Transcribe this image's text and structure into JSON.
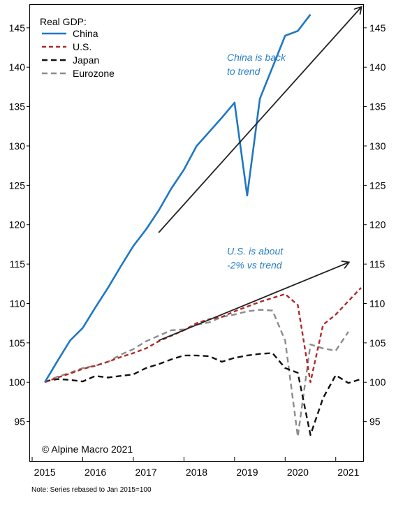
{
  "chart_data": {
    "type": "line",
    "legend_title": "Real GDP:",
    "legend_position": "top-left",
    "ylim": [
      90,
      148
    ],
    "yticks": [
      95,
      100,
      105,
      110,
      115,
      120,
      125,
      130,
      135,
      140,
      145
    ],
    "x_start": 2014.708,
    "x_end": 2021.292,
    "x_tick_labels": [
      "2015",
      "2016",
      "2017",
      "2018",
      "2019",
      "2020",
      "2021"
    ],
    "grid": false,
    "series": [
      {
        "name": "China",
        "color": "#1f77c4",
        "dash": "solid",
        "points": [
          [
            2015.0,
            100.0
          ],
          [
            2015.25,
            102.7
          ],
          [
            2015.5,
            105.3
          ],
          [
            2015.75,
            106.9
          ],
          [
            2016.0,
            109.5
          ],
          [
            2016.25,
            112.0
          ],
          [
            2016.5,
            114.7
          ],
          [
            2016.75,
            117.3
          ],
          [
            2017.0,
            119.4
          ],
          [
            2017.25,
            121.8
          ],
          [
            2017.5,
            124.6
          ],
          [
            2017.75,
            127.0
          ],
          [
            2018.0,
            130.0
          ],
          [
            2018.25,
            131.8
          ],
          [
            2018.5,
            133.6
          ],
          [
            2018.75,
            135.5
          ],
          [
            2019.0,
            123.7
          ],
          [
            2019.25,
            136.0
          ],
          [
            2019.5,
            140.0
          ],
          [
            2019.75,
            144.0
          ],
          [
            2020.0,
            144.6
          ],
          [
            2020.25,
            146.7
          ]
        ]
      },
      {
        "name": "U.S.",
        "color": "#b22a2a",
        "dash": "6,4",
        "points": [
          [
            2015.0,
            100.0
          ],
          [
            2015.25,
            100.6
          ],
          [
            2015.5,
            101.1
          ],
          [
            2015.75,
            101.7
          ],
          [
            2016.0,
            102.1
          ],
          [
            2016.25,
            102.6
          ],
          [
            2016.5,
            103.2
          ],
          [
            2016.75,
            103.7
          ],
          [
            2017.0,
            104.3
          ],
          [
            2017.25,
            105.2
          ],
          [
            2017.5,
            105.9
          ],
          [
            2017.75,
            106.6
          ],
          [
            2018.0,
            107.5
          ],
          [
            2018.25,
            108.0
          ],
          [
            2018.5,
            108.3
          ],
          [
            2018.75,
            109.0
          ],
          [
            2019.0,
            109.6
          ],
          [
            2019.25,
            110.2
          ],
          [
            2019.5,
            110.7
          ],
          [
            2019.75,
            111.2
          ],
          [
            2020.0,
            109.8
          ],
          [
            2020.25,
            100.0
          ],
          [
            2020.5,
            107.3
          ],
          [
            2020.75,
            108.6
          ],
          [
            2021.0,
            110.3
          ],
          [
            2021.25,
            112.0
          ]
        ]
      },
      {
        "name": "Japan",
        "color": "#111111",
        "dash": "8,5",
        "points": [
          [
            2015.0,
            100.1
          ],
          [
            2015.25,
            100.4
          ],
          [
            2015.5,
            100.3
          ],
          [
            2015.75,
            100.1
          ],
          [
            2016.0,
            100.8
          ],
          [
            2016.25,
            100.6
          ],
          [
            2016.5,
            100.8
          ],
          [
            2016.75,
            101.0
          ],
          [
            2017.0,
            101.8
          ],
          [
            2017.25,
            102.3
          ],
          [
            2017.5,
            102.9
          ],
          [
            2017.75,
            103.4
          ],
          [
            2018.0,
            103.4
          ],
          [
            2018.25,
            103.3
          ],
          [
            2018.5,
            102.6
          ],
          [
            2018.75,
            103.1
          ],
          [
            2019.0,
            103.4
          ],
          [
            2019.25,
            103.6
          ],
          [
            2019.5,
            103.7
          ],
          [
            2019.75,
            101.8
          ],
          [
            2020.0,
            101.2
          ],
          [
            2020.25,
            93.3
          ],
          [
            2020.5,
            98.0
          ],
          [
            2020.75,
            100.9
          ],
          [
            2021.0,
            99.9
          ],
          [
            2021.25,
            100.4
          ]
        ]
      },
      {
        "name": "Eurozone",
        "color": "#8c8c8c",
        "dash": "8,5",
        "points": [
          [
            2015.0,
            100.0
          ],
          [
            2015.25,
            100.7
          ],
          [
            2015.5,
            101.2
          ],
          [
            2015.75,
            101.8
          ],
          [
            2016.0,
            102.1
          ],
          [
            2016.25,
            102.6
          ],
          [
            2016.5,
            103.5
          ],
          [
            2016.75,
            104.2
          ],
          [
            2017.0,
            105.2
          ],
          [
            2017.25,
            105.9
          ],
          [
            2017.5,
            106.6
          ],
          [
            2017.75,
            106.7
          ],
          [
            2018.0,
            107.3
          ],
          [
            2018.25,
            107.6
          ],
          [
            2018.5,
            108.3
          ],
          [
            2018.75,
            108.6
          ],
          [
            2019.0,
            109.0
          ],
          [
            2019.25,
            109.2
          ],
          [
            2019.5,
            109.1
          ],
          [
            2019.75,
            105.3
          ],
          [
            2020.0,
            93.1
          ],
          [
            2020.25,
            104.8
          ],
          [
            2020.5,
            104.3
          ],
          [
            2020.75,
            104.0
          ],
          [
            2021.0,
            106.4
          ]
        ]
      }
    ],
    "trend_arrows": [
      {
        "from": [
          2017.25,
          119.0
        ],
        "to": [
          2021.25,
          147.6
        ],
        "color": "#222222"
      },
      {
        "from": [
          2017.25,
          105.3
        ],
        "to": [
          2021.0,
          115.2
        ],
        "color": "#222222"
      }
    ],
    "annotations": [
      {
        "lines": [
          "China is back",
          " to trend"
        ],
        "color": "#2a7fc4",
        "at": [
          2018.6,
          140.8
        ]
      },
      {
        "lines": [
          "U.S. is about",
          "-2% vs trend"
        ],
        "color": "#2a7fc4",
        "at": [
          2018.6,
          116.2
        ]
      }
    ],
    "copyright": "© Alpine Macro 2021",
    "note": "Note: Series rebased to Jan 2015=100"
  }
}
